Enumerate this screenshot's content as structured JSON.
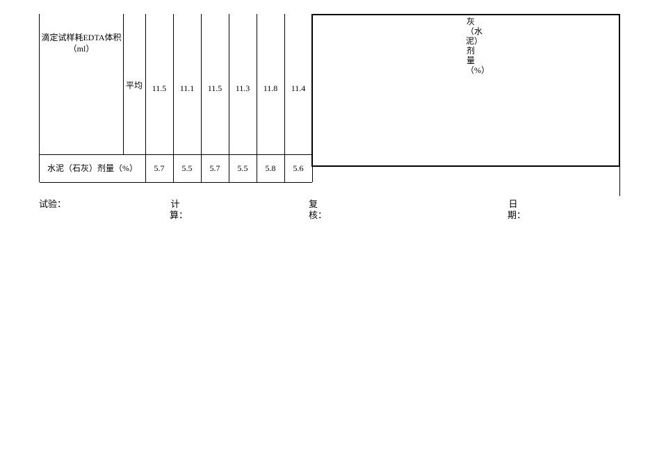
{
  "table": {
    "row1": {
      "label": "滴定试样耗EDTA体积（ml）",
      "avg_label": "平均",
      "values": [
        "11.5",
        "11.1",
        "11.5",
        "11.3",
        "11.8",
        "11.4"
      ]
    },
    "row2": {
      "label": "水泥（石灰）剂量（%）",
      "values": [
        "5.7",
        "5.5",
        "5.7",
        "5.5",
        "5.8",
        "5.6"
      ]
    },
    "right_vertical_text": "灰（水泥）剂量（%）"
  },
  "footer": {
    "l1": "试验：",
    "l2": "计算：",
    "l3": "复核：",
    "l4": "日期："
  },
  "style": {
    "border_color": "#000000",
    "background_color": "#ffffff",
    "font_size_pt": 9,
    "font_family": "SimSun"
  }
}
